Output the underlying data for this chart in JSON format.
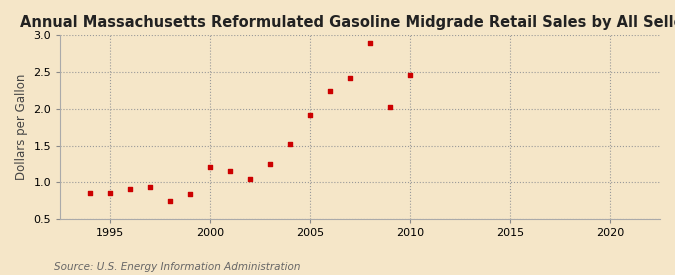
{
  "title": "Annual Massachusetts Reformulated Gasoline Midgrade Retail Sales by All Sellers",
  "ylabel": "Dollars per Gallon",
  "source": "Source: U.S. Energy Information Administration",
  "background_color": "#f5e6c8",
  "marker_color": "#cc0000",
  "years": [
    1994,
    1995,
    1996,
    1997,
    1998,
    1999,
    2000,
    2001,
    2002,
    2003,
    2004,
    2005,
    2006,
    2007,
    2008,
    2009,
    2010
  ],
  "values": [
    0.852,
    0.86,
    0.91,
    0.93,
    0.74,
    0.84,
    1.21,
    1.15,
    1.05,
    1.25,
    1.52,
    1.91,
    2.24,
    2.42,
    2.89,
    2.02,
    2.46
  ],
  "xlim": [
    1992.5,
    2022.5
  ],
  "ylim": [
    0.5,
    3.0
  ],
  "xticks": [
    1995,
    2000,
    2005,
    2010,
    2015,
    2020
  ],
  "yticks": [
    0.5,
    1.0,
    1.5,
    2.0,
    2.5,
    3.0
  ],
  "title_fontsize": 10.5,
  "label_fontsize": 8.5,
  "tick_fontsize": 8,
  "source_fontsize": 7.5
}
